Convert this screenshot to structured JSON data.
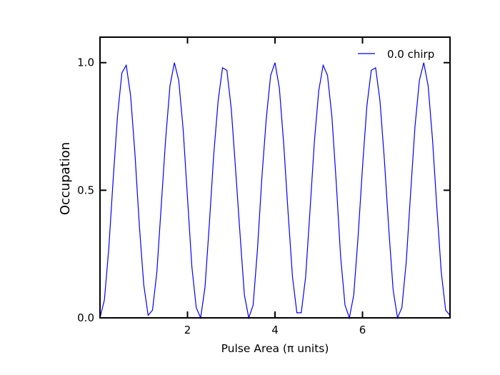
{
  "chart_data": {
    "type": "line",
    "title": "",
    "xlabel": "Pulse Area (π units)",
    "ylabel": "Occupation",
    "xlim": [
      0,
      8
    ],
    "ylim": [
      0,
      1.1
    ],
    "x_ticks": [
      2,
      4,
      6
    ],
    "x_tick_labels": [
      "2",
      "4",
      "6"
    ],
    "y_ticks": [
      0.0,
      0.5,
      1.0
    ],
    "y_tick_labels": [
      "0.0",
      "0.5",
      "1.0"
    ],
    "grid": false,
    "legend_position": "top-right",
    "series": [
      {
        "name": "0.0 chirp",
        "color": "#0000ff",
        "x": [
          0.0,
          0.1,
          0.2,
          0.3,
          0.4,
          0.5,
          0.6,
          0.7,
          0.8,
          0.9,
          1.0,
          1.1,
          1.2,
          1.3,
          1.4,
          1.5,
          1.6,
          1.7,
          1.8,
          1.9,
          2.0,
          2.1,
          2.2,
          2.3,
          2.4,
          2.5,
          2.6,
          2.7,
          2.8,
          2.9,
          3.0,
          3.1,
          3.2,
          3.3,
          3.4,
          3.5,
          3.6,
          3.7,
          3.8,
          3.9,
          4.0,
          4.1,
          4.2,
          4.3,
          4.4,
          4.5,
          4.6,
          4.7,
          4.8,
          4.9,
          5.0,
          5.1,
          5.2,
          5.3,
          5.4,
          5.5,
          5.6,
          5.7,
          5.8,
          5.9,
          6.0,
          6.1,
          6.2,
          6.3,
          6.4,
          6.5,
          6.6,
          6.7,
          6.8,
          6.9,
          7.0,
          7.1,
          7.2,
          7.3,
          7.4,
          7.5,
          7.6,
          7.7,
          7.8,
          7.9,
          8.0
        ],
        "y": [
          0.0,
          0.07,
          0.27,
          0.54,
          0.79,
          0.96,
          0.99,
          0.87,
          0.64,
          0.36,
          0.13,
          0.01,
          0.03,
          0.18,
          0.44,
          0.7,
          0.91,
          1.0,
          0.93,
          0.74,
          0.47,
          0.2,
          0.04,
          0.0,
          0.12,
          0.37,
          0.64,
          0.85,
          0.98,
          0.97,
          0.82,
          0.58,
          0.33,
          0.09,
          0.0,
          0.05,
          0.27,
          0.55,
          0.78,
          0.95,
          1.0,
          0.9,
          0.68,
          0.41,
          0.16,
          0.02,
          0.02,
          0.16,
          0.42,
          0.69,
          0.89,
          0.99,
          0.95,
          0.79,
          0.53,
          0.24,
          0.05,
          0.0,
          0.09,
          0.32,
          0.59,
          0.83,
          0.97,
          0.98,
          0.85,
          0.62,
          0.35,
          0.11,
          0.0,
          0.04,
          0.22,
          0.49,
          0.75,
          0.93,
          1.0,
          0.91,
          0.7,
          0.43,
          0.18,
          0.03,
          0.01
        ]
      }
    ]
  }
}
